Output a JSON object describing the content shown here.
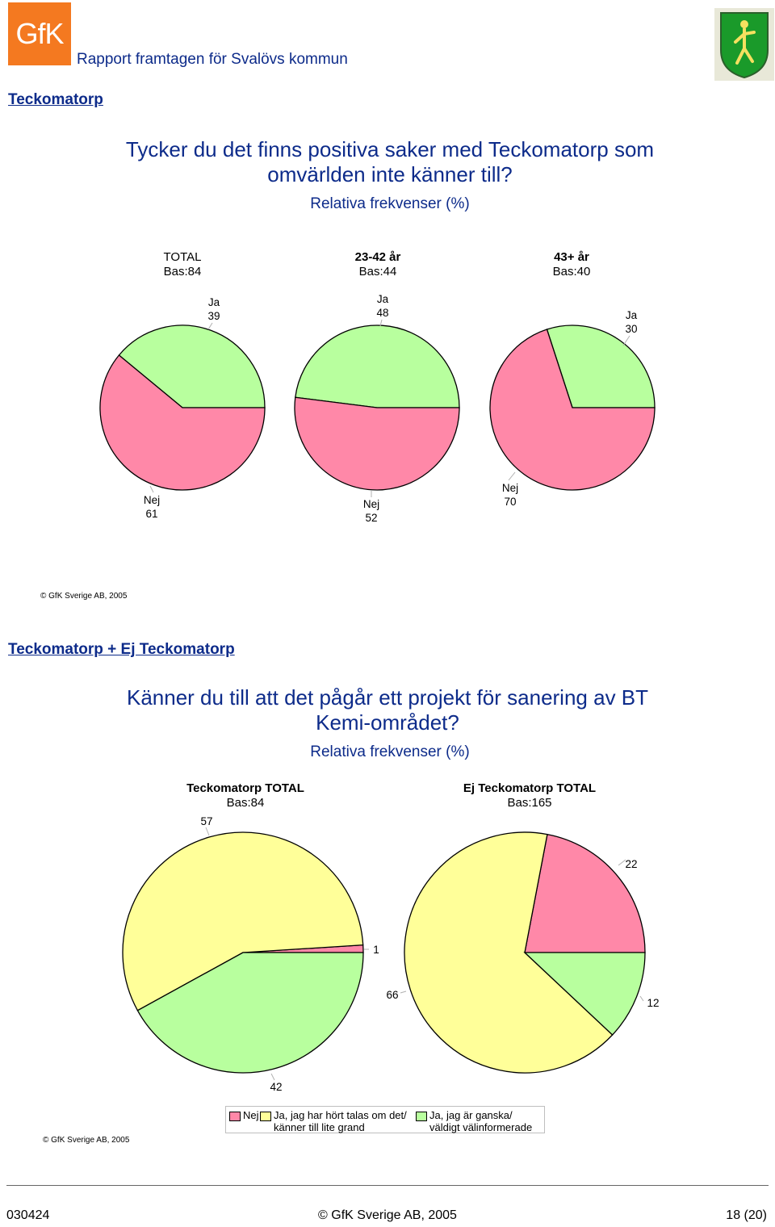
{
  "header": {
    "logo_text": "GfK",
    "report_title": "Rapport framtagen för Svalövs kommun"
  },
  "colors": {
    "nej": "#ff88a8",
    "ja": "#b8ff9e",
    "ja_hort": "#ffff99",
    "brand": "#f47920",
    "title": "#0d2b8a"
  },
  "section1": {
    "title": "Teckomatorp",
    "question": "Tycker du det finns positiva saker med Teckomatorp som omvärlden inte känner till?",
    "subtitle": "Relativa frekvenser (%)",
    "copyright": "© GfK Sverige AB, 2005"
  },
  "section2": {
    "title": "Teckomatorp + Ej Teckomatorp",
    "question": "Känner du till att det pågår ett projekt för sanering av BT Kemi-området?",
    "subtitle": "Relativa frekvenser (%)",
    "copyright": "© GfK Sverige AB, 2005"
  },
  "chart_data": [
    {
      "type": "pie",
      "title": "Tycker du det finns positiva saker med Teckomatorp som omvärlden inte känner till?",
      "subtitle": "Relativa frekvenser (%)",
      "pies": [
        {
          "name": "TOTAL",
          "base": "Bas:84",
          "slices": [
            {
              "label": "Ja",
              "value": 39
            },
            {
              "label": "Nej",
              "value": 61
            }
          ]
        },
        {
          "name": "23-42 år",
          "base": "Bas:44",
          "slices": [
            {
              "label": "Ja",
              "value": 48
            },
            {
              "label": "Nej",
              "value": 52
            }
          ]
        },
        {
          "name": "43+ år",
          "base": "Bas:40",
          "slices": [
            {
              "label": "Ja",
              "value": 30
            },
            {
              "label": "Nej",
              "value": 70
            }
          ]
        }
      ]
    },
    {
      "type": "pie",
      "title": "Känner du till att det pågår ett projekt för sanering av BT Kemi-området?",
      "subtitle": "Relativa frekvenser (%)",
      "legend": [
        "Nej",
        "Ja, jag har hört talas om det/ känner till lite grand",
        "Ja, jag är ganska/ väldigt välinformerade"
      ],
      "legend_lines": [
        [
          "Nej"
        ],
        [
          "Ja, jag har hört talas om det/",
          "känner till lite grand"
        ],
        [
          "Ja, jag är ganska/",
          "väldigt välinformerade"
        ]
      ],
      "legend_position": "bottom",
      "pies": [
        {
          "name": "Teckomatorp TOTAL",
          "base": "Bas:84",
          "slices": [
            {
              "label": "Nej",
              "value": 1
            },
            {
              "label": "Ja, jag har hört talas om det/ känner till lite grand",
              "value": 57
            },
            {
              "label": "Ja, jag är ganska/ väldigt välinformerade",
              "value": 42
            }
          ]
        },
        {
          "name": "Ej Teckomatorp TOTAL",
          "base": "Bas:165",
          "slices": [
            {
              "label": "Nej",
              "value": 22
            },
            {
              "label": "Ja, jag har hört talas om det/ känner till lite grand",
              "value": 66
            },
            {
              "label": "Ja, jag är ganska/ väldigt välinformerade",
              "value": 12
            }
          ]
        }
      ]
    }
  ],
  "footer": {
    "left": "030424",
    "center": "© GfK Sverige AB, 2005",
    "right": "18 (20)"
  }
}
